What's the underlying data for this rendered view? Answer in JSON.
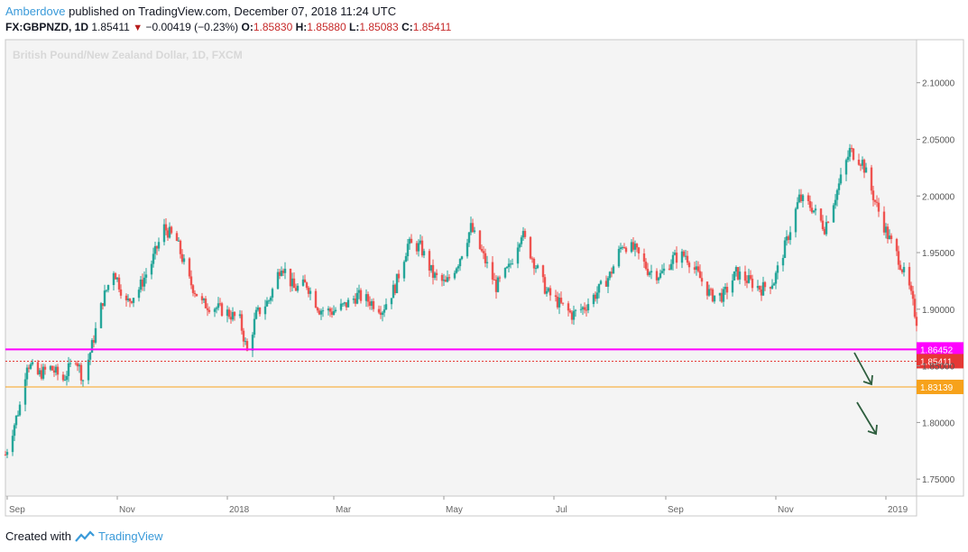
{
  "header": {
    "author": "Amberdove",
    "published_text": "published on TradingView.com, December 07, 2018 11:24 UTC"
  },
  "quote": {
    "symbol": "FX:GBPNZD, 1D",
    "last": "1.85411",
    "change": "−0.00419 (−0.23%)",
    "o_label": "O:",
    "o": "1.85830",
    "h_label": "H:",
    "h": "1.85880",
    "l_label": "L:",
    "l": "1.85083",
    "c_label": "C:",
    "c": "1.85411"
  },
  "footer": {
    "created_with": "Created with",
    "brand": "TradingView"
  },
  "colors": {
    "up": "#26a69a",
    "down": "#ef5350",
    "magenta": "#ff00ff",
    "orange": "#f7a21b",
    "last_line": "#e53935",
    "arrow": "#2e5e3e",
    "plot_bg": "#f4f4f4"
  },
  "chart_data": {
    "type": "candlestick",
    "watermark": "British Pound/New Zealand Dollar, 1D, FXCM",
    "y_ticks": [
      "2.10000",
      "2.05000",
      "2.00000",
      "1.95000",
      "1.90000",
      "1.85000",
      "1.80000",
      "1.75000"
    ],
    "y_tick_values": [
      2.1,
      2.05,
      2.0,
      1.95,
      1.9,
      1.85,
      1.8,
      1.75
    ],
    "ylim": [
      1.735,
      2.138
    ],
    "x_ticks": [
      "Sep",
      "Nov",
      "2018",
      "Mar",
      "May",
      "Jul",
      "Sep",
      "Nov",
      "2019"
    ],
    "x_tick_dates": [
      "2017-09-01",
      "2017-11-01",
      "2018-01-01",
      "2018-03-01",
      "2018-05-01",
      "2018-07-01",
      "2018-09-01",
      "2018-11-01",
      "2019-01-01"
    ],
    "x_range": [
      "2017-08-31",
      "2019-01-18"
    ],
    "horizontal_levels": [
      {
        "value": 1.86452,
        "label": "1.86452",
        "color": "magenta"
      },
      {
        "value": 1.85411,
        "label": "1.85411",
        "color": "last_line",
        "style": "dotted"
      },
      {
        "value": 1.83139,
        "label": "1.83139",
        "color": "orange"
      }
    ],
    "close_path": [
      [
        "2017-09-01",
        1.777
      ],
      [
        "2017-09-08",
        1.815
      ],
      [
        "2017-09-12",
        1.853
      ],
      [
        "2017-09-18",
        1.842
      ],
      [
        "2017-09-25",
        1.848
      ],
      [
        "2017-10-02",
        1.838
      ],
      [
        "2017-10-09",
        1.858
      ],
      [
        "2017-10-13",
        1.838
      ],
      [
        "2017-10-18",
        1.868
      ],
      [
        "2017-10-24",
        1.908
      ],
      [
        "2017-10-30",
        1.935
      ],
      [
        "2017-11-06",
        1.905
      ],
      [
        "2017-11-13",
        1.918
      ],
      [
        "2017-11-20",
        1.941
      ],
      [
        "2017-11-27",
        1.972
      ],
      [
        "2017-12-04",
        1.96
      ],
      [
        "2017-12-11",
        1.925
      ],
      [
        "2017-12-18",
        1.905
      ],
      [
        "2017-12-25",
        1.902
      ],
      [
        "2018-01-01",
        1.897
      ],
      [
        "2018-01-08",
        1.89
      ],
      [
        "2018-01-12",
        1.862
      ],
      [
        "2018-01-17",
        1.895
      ],
      [
        "2018-01-24",
        1.908
      ],
      [
        "2018-01-31",
        1.94
      ],
      [
        "2018-02-07",
        1.918
      ],
      [
        "2018-02-14",
        1.922
      ],
      [
        "2018-02-21",
        1.9
      ],
      [
        "2018-02-28",
        1.898
      ],
      [
        "2018-03-07",
        1.903
      ],
      [
        "2018-03-14",
        1.912
      ],
      [
        "2018-03-21",
        1.907
      ],
      [
        "2018-03-28",
        1.9
      ],
      [
        "2018-04-04",
        1.92
      ],
      [
        "2018-04-11",
        1.957
      ],
      [
        "2018-04-18",
        1.955
      ],
      [
        "2018-04-25",
        1.93
      ],
      [
        "2018-05-02",
        1.922
      ],
      [
        "2018-05-09",
        1.942
      ],
      [
        "2018-05-16",
        1.972
      ],
      [
        "2018-05-23",
        1.946
      ],
      [
        "2018-05-30",
        1.92
      ],
      [
        "2018-06-06",
        1.936
      ],
      [
        "2018-06-13",
        1.968
      ],
      [
        "2018-06-20",
        1.942
      ],
      [
        "2018-06-27",
        1.915
      ],
      [
        "2018-07-04",
        1.905
      ],
      [
        "2018-07-11",
        1.895
      ],
      [
        "2018-07-18",
        1.902
      ],
      [
        "2018-07-25",
        1.915
      ],
      [
        "2018-08-01",
        1.93
      ],
      [
        "2018-08-08",
        1.958
      ],
      [
        "2018-08-15",
        1.952
      ],
      [
        "2018-08-22",
        1.935
      ],
      [
        "2018-08-29",
        1.93
      ],
      [
        "2018-09-05",
        1.945
      ],
      [
        "2018-09-12",
        1.948
      ],
      [
        "2018-09-19",
        1.93
      ],
      [
        "2018-09-26",
        1.912
      ],
      [
        "2018-10-03",
        1.912
      ],
      [
        "2018-10-10",
        1.932
      ],
      [
        "2018-10-17",
        1.925
      ],
      [
        "2018-10-24",
        1.918
      ],
      [
        "2018-10-31",
        1.925
      ],
      [
        "2018-11-07",
        1.96
      ],
      [
        "2018-11-14",
        1.998
      ],
      [
        "2018-11-21",
        1.99
      ],
      [
        "2018-11-28",
        1.972
      ],
      [
        "2018-12-05",
        2.005
      ],
      [
        "2018-12-12",
        2.04
      ],
      [
        "2018-12-19",
        2.03
      ],
      [
        "2018-12-26",
        1.995
      ],
      [
        "2019-01-02",
        1.965
      ],
      [
        "2019-01-08",
        1.945
      ],
      [
        "2019-01-14",
        1.918
      ],
      [
        "2019-01-18",
        1.89
      ]
    ]
  }
}
